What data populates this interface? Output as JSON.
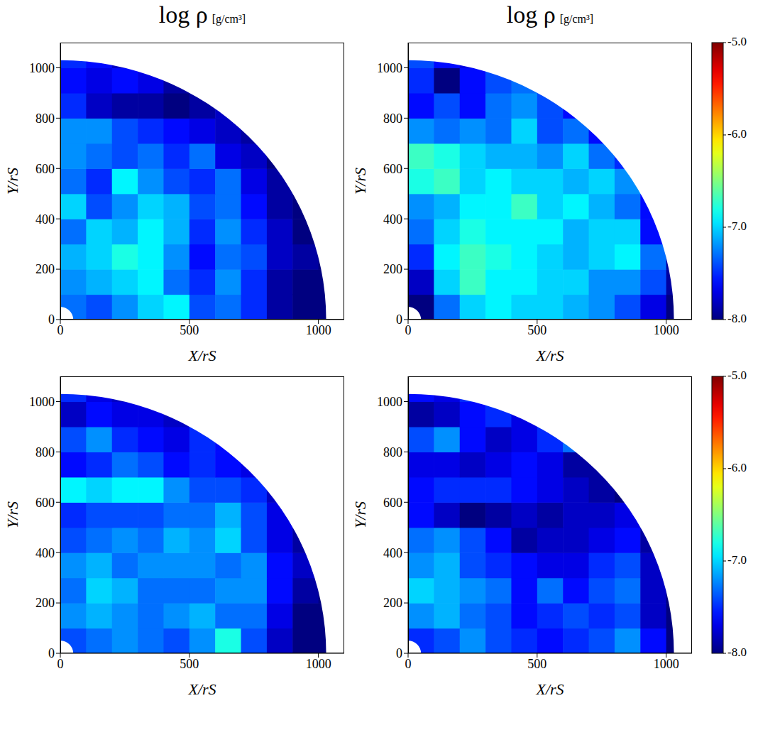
{
  "chart_data": [
    {
      "type": "heatmap",
      "title": "log ρ",
      "subtitle": "[g/cm³]",
      "x_label": "X/rS",
      "y_label": "Y/rS",
      "xlim": [
        0,
        1100
      ],
      "ylim": [
        0,
        1100
      ],
      "xticks": [
        0,
        500,
        1000
      ],
      "yticks": [
        0,
        200,
        400,
        600,
        800,
        1000
      ],
      "r_range": [
        50,
        1030
      ],
      "x_edges": [
        0,
        100,
        200,
        300,
        400,
        500,
        600,
        700,
        800,
        900,
        1000,
        1100
      ],
      "y_edges": [
        0,
        100,
        200,
        300,
        400,
        500,
        600,
        700,
        800,
        900,
        1000,
        1100
      ],
      "cells": [
        [
          -7.3,
          -7.4,
          -7.2,
          -7.0,
          -6.9,
          -7.4,
          -7.3,
          -7.5,
          -7.9,
          -8.0,
          -8.0
        ],
        [
          -7.2,
          -7.1,
          -7.0,
          -6.9,
          -7.3,
          -7.5,
          -7.2,
          -7.5,
          -7.9,
          -8.0,
          -8.0
        ],
        [
          -7.1,
          -7.0,
          -6.8,
          -6.9,
          -7.2,
          -7.6,
          -7.3,
          -7.4,
          -7.8,
          -7.9,
          -8.0
        ],
        [
          -7.3,
          -7.0,
          -7.1,
          -6.9,
          -7.1,
          -7.5,
          -7.2,
          -7.5,
          -7.8,
          -8.0,
          null
        ],
        [
          -7.0,
          -7.4,
          -7.2,
          -7.0,
          -7.1,
          -7.4,
          -7.3,
          -7.6,
          -7.9,
          -8.0,
          null
        ],
        [
          -7.3,
          -7.5,
          -6.9,
          -7.2,
          -7.4,
          -7.5,
          -7.3,
          -7.7,
          -7.9,
          null,
          null
        ],
        [
          -7.2,
          -7.3,
          -7.4,
          -7.3,
          -7.5,
          -7.3,
          -7.7,
          -7.8,
          -8.0,
          null,
          null
        ],
        [
          -7.2,
          -7.2,
          -7.4,
          -7.5,
          -7.6,
          -7.7,
          -7.8,
          -7.9,
          null,
          null,
          null
        ],
        [
          -7.5,
          -7.8,
          -7.9,
          -7.9,
          -8.0,
          -7.9,
          -7.8,
          null,
          null,
          null,
          null
        ],
        [
          -7.6,
          -7.7,
          -7.6,
          -7.7,
          -7.9,
          null,
          null,
          null,
          null,
          null,
          null
        ],
        [
          -7.5,
          -7.6,
          -7.8,
          null,
          null,
          null,
          null,
          null,
          null,
          null,
          null
        ]
      ]
    },
    {
      "type": "heatmap",
      "title": "log ρ",
      "subtitle": "[g/cm³]",
      "x_label": "X/rS",
      "y_label": "Y/rS",
      "xlim": [
        0,
        1100
      ],
      "ylim": [
        0,
        1100
      ],
      "xticks": [
        0,
        500,
        1000
      ],
      "yticks": [
        0,
        200,
        400,
        600,
        800,
        1000
      ],
      "r_range": [
        50,
        1030
      ],
      "x_edges": [
        0,
        100,
        200,
        300,
        400,
        500,
        600,
        700,
        800,
        900,
        1000,
        1100
      ],
      "y_edges": [
        0,
        100,
        200,
        300,
        400,
        500,
        600,
        700,
        800,
        900,
        1000,
        1100
      ],
      "cells": [
        [
          -8.0,
          -7.3,
          -7.0,
          -6.9,
          -7.0,
          -7.0,
          -7.1,
          -7.2,
          -7.4,
          -7.7,
          -8.0
        ],
        [
          -7.8,
          -7.0,
          -6.7,
          -6.9,
          -6.9,
          -7.0,
          -7.0,
          -7.2,
          -7.2,
          -7.4,
          -7.9
        ],
        [
          -7.5,
          -6.9,
          -6.7,
          -6.8,
          -6.9,
          -7.0,
          -7.1,
          -7.0,
          -6.9,
          -7.3,
          -7.9
        ],
        [
          -7.3,
          -7.0,
          -6.8,
          -6.9,
          -6.9,
          -6.9,
          -7.1,
          -7.0,
          -7.0,
          -7.6,
          null
        ],
        [
          -7.2,
          -7.1,
          -6.9,
          -6.9,
          -6.7,
          -7.0,
          -6.9,
          -7.1,
          -7.3,
          -7.6,
          null
        ],
        [
          -6.8,
          -6.7,
          -7.0,
          -6.9,
          -7.0,
          -7.0,
          -7.1,
          -7.0,
          -7.2,
          null,
          null
        ],
        [
          -6.7,
          -6.8,
          -7.0,
          -7.1,
          -7.1,
          -7.2,
          -7.0,
          -7.3,
          -7.5,
          null,
          null
        ],
        [
          -7.2,
          -7.3,
          -7.2,
          -7.3,
          -7.0,
          -7.4,
          -7.3,
          -7.6,
          null,
          null,
          null
        ],
        [
          -7.6,
          -7.4,
          -7.6,
          -7.3,
          -7.2,
          -7.4,
          -7.6,
          null,
          null,
          null,
          null
        ],
        [
          -7.5,
          -8.0,
          -7.6,
          -7.4,
          -7.3,
          null,
          null,
          null,
          null,
          null,
          null
        ],
        [
          -7.4,
          -7.6,
          -7.7,
          null,
          null,
          null,
          null,
          null,
          null,
          null,
          null
        ]
      ],
      "colorbar": {
        "range": [
          -8,
          -5
        ],
        "ticks": [
          {
            "value": -8,
            "label": "-8.0"
          },
          {
            "value": -7,
            "label": "-7.0"
          },
          {
            "value": -6,
            "label": "-6.0"
          },
          {
            "value": -5,
            "label": "-5.0"
          }
        ]
      }
    },
    {
      "type": "heatmap",
      "x_label": "X/rS",
      "y_label": "Y/rS",
      "xlim": [
        0,
        1100
      ],
      "ylim": [
        0,
        1100
      ],
      "xticks": [
        0,
        500,
        1000
      ],
      "yticks": [
        0,
        200,
        400,
        600,
        800,
        1000
      ],
      "r_range": [
        50,
        1030
      ],
      "x_edges": [
        0,
        100,
        200,
        300,
        400,
        500,
        600,
        700,
        800,
        900,
        1000,
        1100
      ],
      "y_edges": [
        0,
        100,
        200,
        300,
        400,
        500,
        600,
        700,
        800,
        900,
        1000,
        1100
      ],
      "cells": [
        [
          -7.4,
          -7.3,
          -7.2,
          -7.3,
          -7.4,
          -7.2,
          -6.8,
          -7.4,
          -7.8,
          -8.0,
          -8.0
        ],
        [
          -7.2,
          -7.1,
          -7.2,
          -7.3,
          -7.2,
          -7.1,
          -7.3,
          -7.3,
          -7.7,
          -8.0,
          -8.0
        ],
        [
          -7.3,
          -7.0,
          -7.1,
          -7.3,
          -7.3,
          -7.3,
          -7.2,
          -7.2,
          -7.6,
          -7.9,
          -8.0
        ],
        [
          -7.2,
          -7.1,
          -7.3,
          -7.2,
          -7.2,
          -7.2,
          -7.3,
          -7.2,
          -7.6,
          -7.8,
          null
        ],
        [
          -7.4,
          -7.3,
          -7.2,
          -7.3,
          -7.1,
          -7.2,
          -7.0,
          -7.4,
          -7.7,
          -7.9,
          null
        ],
        [
          -7.5,
          -7.4,
          -7.4,
          -7.4,
          -7.3,
          -7.3,
          -7.1,
          -7.4,
          -7.7,
          null,
          null
        ],
        [
          -6.9,
          -7.0,
          -6.9,
          -6.9,
          -7.2,
          -7.4,
          -7.4,
          -7.5,
          -7.8,
          null,
          null
        ],
        [
          -7.6,
          -7.5,
          -7.3,
          -7.4,
          -7.6,
          -7.5,
          -7.6,
          -7.7,
          null,
          null,
          null
        ],
        [
          -7.4,
          -7.2,
          -7.5,
          -7.6,
          -7.7,
          -7.5,
          -7.6,
          null,
          null,
          null,
          null
        ],
        [
          -7.8,
          -7.6,
          -7.7,
          -7.7,
          -7.8,
          null,
          null,
          null,
          null,
          null,
          null
        ],
        [
          -7.5,
          -7.7,
          -7.8,
          null,
          null,
          null,
          null,
          null,
          null,
          null,
          null
        ]
      ]
    },
    {
      "type": "heatmap",
      "x_label": "X/rS",
      "y_label": "Y/rS",
      "xlim": [
        0,
        1100
      ],
      "ylim": [
        0,
        1100
      ],
      "xticks": [
        0,
        500,
        1000
      ],
      "yticks": [
        0,
        200,
        400,
        600,
        800,
        1000
      ],
      "r_range": [
        50,
        1030
      ],
      "x_edges": [
        0,
        100,
        200,
        300,
        400,
        500,
        600,
        700,
        800,
        900,
        1000,
        1100
      ],
      "y_edges": [
        0,
        100,
        200,
        300,
        400,
        500,
        600,
        700,
        800,
        900,
        1000,
        1100
      ],
      "cells": [
        [
          -7.5,
          -7.4,
          -7.2,
          -7.4,
          -7.5,
          -7.6,
          -7.5,
          -7.4,
          -7.2,
          -7.6,
          -8.0
        ],
        [
          -7.2,
          -7.1,
          -7.3,
          -7.4,
          -7.6,
          -7.5,
          -7.4,
          -7.5,
          -7.4,
          -7.8,
          -8.0
        ],
        [
          -7.0,
          -7.1,
          -7.2,
          -7.3,
          -7.6,
          -7.3,
          -7.6,
          -7.4,
          -7.3,
          -7.8,
          -8.0
        ],
        [
          -7.2,
          -7.1,
          -7.4,
          -7.5,
          -7.6,
          -7.7,
          -7.7,
          -7.5,
          -7.4,
          -7.8,
          null
        ],
        [
          -7.3,
          -7.2,
          -7.4,
          -7.6,
          -7.9,
          -7.8,
          -7.8,
          -7.7,
          -7.6,
          -7.9,
          null
        ],
        [
          -7.6,
          -7.8,
          -8.0,
          -7.9,
          -7.8,
          -7.9,
          -7.8,
          -7.8,
          -7.7,
          null,
          null
        ],
        [
          -7.6,
          -7.5,
          -7.5,
          -7.5,
          -7.6,
          -7.7,
          -7.8,
          -7.9,
          -8.0,
          null,
          null
        ],
        [
          -7.7,
          -7.7,
          -7.8,
          -7.7,
          -7.6,
          -7.7,
          -7.9,
          -7.9,
          null,
          null,
          null
        ],
        [
          -7.4,
          -7.2,
          -7.6,
          -7.8,
          -7.7,
          -7.5,
          -7.3,
          null,
          null,
          null,
          null
        ],
        [
          -7.9,
          -7.8,
          -7.6,
          -7.5,
          -7.7,
          null,
          null,
          null,
          null,
          null,
          null
        ],
        [
          -7.6,
          -7.7,
          -7.5,
          null,
          null,
          null,
          null,
          null,
          null,
          null,
          null
        ]
      ],
      "colorbar": {
        "range": [
          -8,
          -5
        ],
        "ticks": [
          {
            "value": -8,
            "label": "-8.0"
          },
          {
            "value": -7,
            "label": "-7.0"
          },
          {
            "value": -6,
            "label": "-6.0"
          },
          {
            "value": -5,
            "label": "-5.0"
          }
        ]
      }
    }
  ]
}
